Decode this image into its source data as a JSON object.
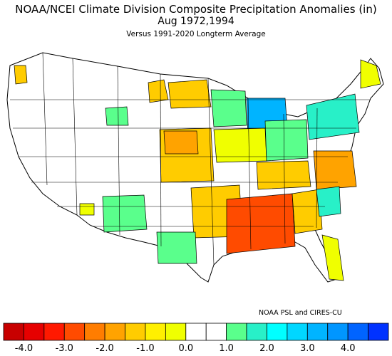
{
  "title": "NOAA/NCEI Climate Division Composite Precipitation Anomalies (in)",
  "period": "Aug   1972,1994",
  "subtitle": "Versus 1991-2020 Longterm Average",
  "credit": "NOAA PSL and CIRES-CU",
  "colorbar": {
    "colors": [
      "#c80000",
      "#e60000",
      "#ff1900",
      "#ff4b00",
      "#ff7d00",
      "#ffa300",
      "#ffcc00",
      "#fff000",
      "#f0ff00",
      "#ffffff",
      "#ffffff",
      "#5aff8c",
      "#28f0c8",
      "#00ffff",
      "#00d7ff",
      "#00b4ff",
      "#0096ff",
      "#0064ff",
      "#0032ff"
    ],
    "tick_labels": [
      "-4.0",
      "-3.0",
      "-2.0",
      "-1.0",
      "0.0",
      "1.0",
      "2.0",
      "3.0",
      "4.0"
    ]
  },
  "regions": [
    {
      "name": "washington-west",
      "color": "#ffcc00"
    },
    {
      "name": "north-dakota-east",
      "color": "#ffcc00"
    },
    {
      "name": "minnesota",
      "color": "#ffcc00"
    },
    {
      "name": "iowa-wisconsin",
      "color": "#5aff8c"
    },
    {
      "name": "michigan",
      "color": "#00b4ff"
    },
    {
      "name": "nebraska-kansas",
      "color": "#ffcc00"
    },
    {
      "name": "kansas-central",
      "color": "#ffa300"
    },
    {
      "name": "missouri-illinois",
      "color": "#f0ff00"
    },
    {
      "name": "ohio-valley",
      "color": "#5aff8c"
    },
    {
      "name": "new-york-pennsylvania",
      "color": "#28f0c8"
    },
    {
      "name": "maine",
      "color": "#f0ff00"
    },
    {
      "name": "virginia-north-carolina",
      "color": "#ffa300"
    },
    {
      "name": "texas-east-arkansas",
      "color": "#ffcc00"
    },
    {
      "name": "louisiana-mississippi-alabama",
      "color": "#ff4b00"
    },
    {
      "name": "georgia",
      "color": "#ffcc00"
    },
    {
      "name": "south-carolina",
      "color": "#28f0c8"
    },
    {
      "name": "florida",
      "color": "#f0ff00"
    },
    {
      "name": "new-mexico",
      "color": "#5aff8c"
    },
    {
      "name": "arizona",
      "color": "#f0ff00"
    },
    {
      "name": "texas-west",
      "color": "#5aff8c"
    },
    {
      "name": "wyoming",
      "color": "#5aff8c"
    },
    {
      "name": "tennessee-kentucky",
      "color": "#ffcc00"
    }
  ]
}
